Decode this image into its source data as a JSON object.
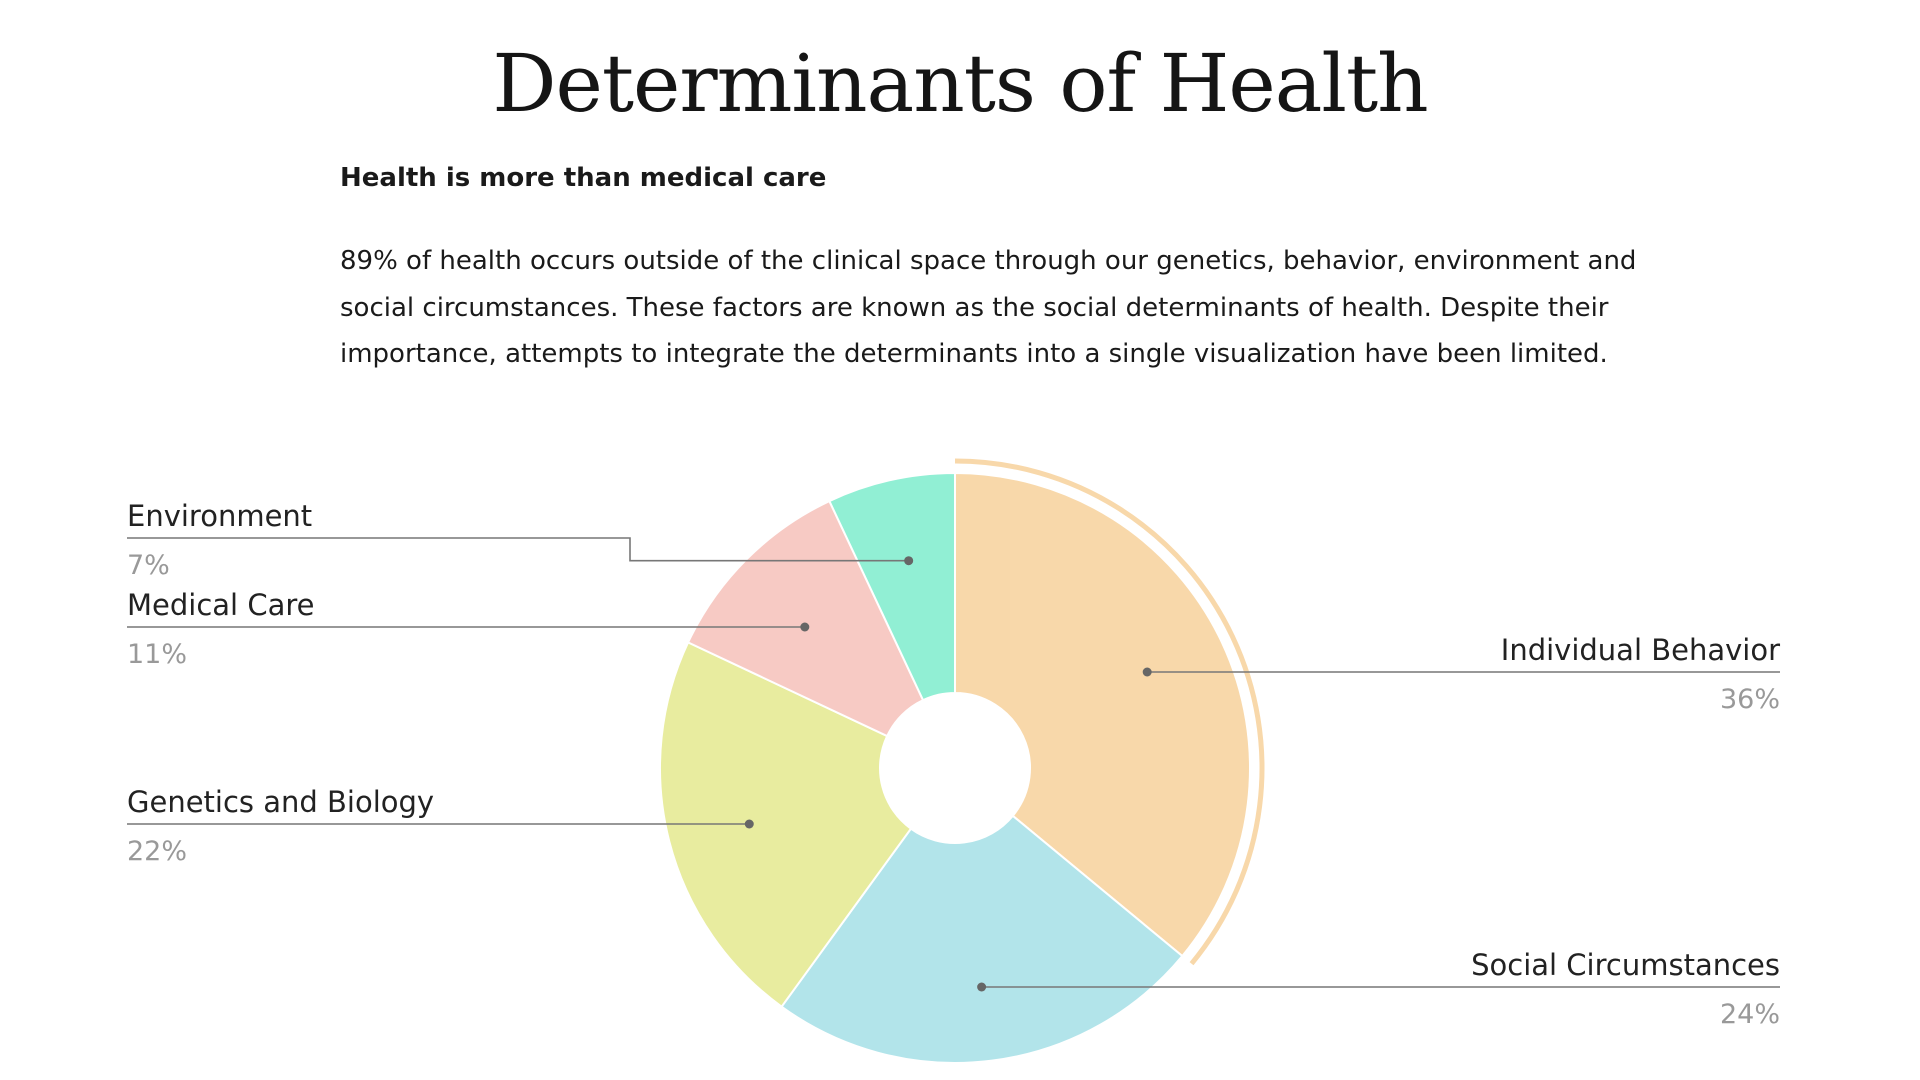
{
  "header": {
    "title": "Determinants of Health",
    "subtitle": "Health is more than medical care",
    "paragraph": "89% of health occurs outside of the clinical space through our genetics, behavior, environment and social circumstances. These factors are known as the social determinants of health. Despite their importance, attempts to integrate the determinants into a single visualization have been limited."
  },
  "chart_data": {
    "type": "pie",
    "title": "Determinants of Health",
    "subtitle": "Health is more than medical care",
    "donut": true,
    "highlighted": "Individual Behavior",
    "slices": [
      {
        "label": "Individual Behavior",
        "value": 36,
        "value_label": "36%",
        "color": "#f8d8aa"
      },
      {
        "label": "Social Circumstances",
        "value": 24,
        "value_label": "24%",
        "color": "#b2e4ea"
      },
      {
        "label": "Genetics and Biology",
        "value": 22,
        "value_label": "22%",
        "color": "#e8ec9f"
      },
      {
        "label": "Medical Care",
        "value": 11,
        "value_label": "11%",
        "color": "#f7cac4"
      },
      {
        "label": "Environment",
        "value": 7,
        "value_label": "7%",
        "color": "#91efd4"
      }
    ]
  }
}
